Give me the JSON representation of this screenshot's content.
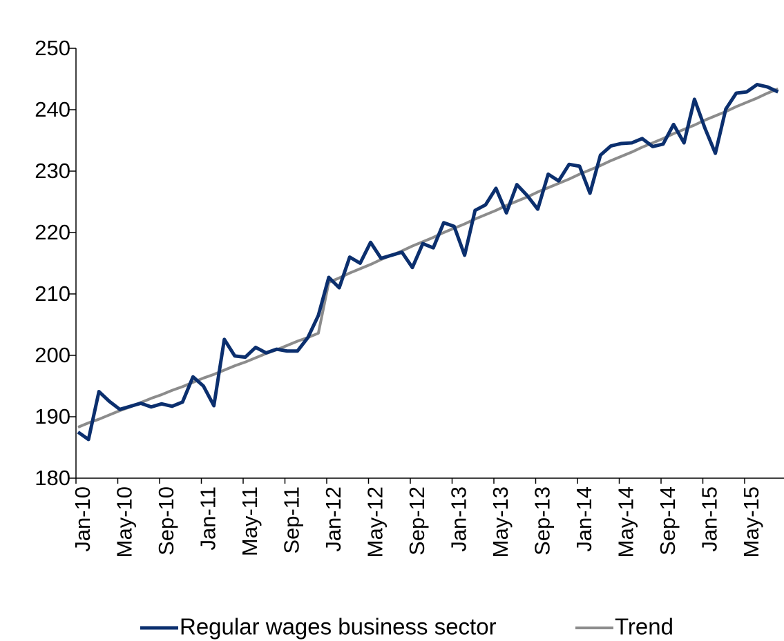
{
  "chart_data": {
    "type": "line",
    "categories": [
      "Jan-10",
      null,
      null,
      null,
      "May-10",
      null,
      null,
      null,
      "Sep-10",
      null,
      null,
      null,
      "Jan-11",
      null,
      null,
      null,
      "May-11",
      null,
      null,
      null,
      "Sep-11",
      null,
      null,
      null,
      "Jan-12",
      null,
      null,
      null,
      "May-12",
      null,
      null,
      null,
      "Sep-12",
      null,
      null,
      null,
      "Jan-13",
      null,
      null,
      null,
      "May-13",
      null,
      null,
      null,
      "Sep-13",
      null,
      null,
      null,
      "Jan-14",
      null,
      null,
      null,
      "May-14",
      null,
      null,
      null,
      "Sep-14",
      null,
      null,
      null,
      "Jan-15",
      null,
      null,
      null,
      "May-15",
      null,
      null,
      null
    ],
    "series": [
      {
        "name": "Regular wages business sector",
        "color": "#0b2f6e",
        "values": [
          187.5,
          186.3,
          194.1,
          192.5,
          191.2,
          191.7,
          192.2,
          191.6,
          192.1,
          191.7,
          192.4,
          196.5,
          195.0,
          191.8,
          202.6,
          199.9,
          199.7,
          201.3,
          200.4,
          201.0,
          200.7,
          200.7,
          202.9,
          206.5,
          212.7,
          211.0,
          216.0,
          215.0,
          218.4,
          215.8,
          216.3,
          216.8,
          214.3,
          218.2,
          217.5,
          221.6,
          221.0,
          216.3,
          223.6,
          224.5,
          227.2,
          223.2,
          227.8,
          226.0,
          223.8,
          229.5,
          228.4,
          231.1,
          230.8,
          226.4,
          232.6,
          234.1,
          234.5,
          234.6,
          235.3,
          234.0,
          234.4,
          237.6,
          234.6,
          241.7,
          237.0,
          232.9,
          240.1,
          242.7,
          242.9,
          244.1,
          243.7,
          242.9
        ]
      },
      {
        "name": "Trend",
        "color": "#8c8c8c",
        "values": [
          188.3,
          189.0,
          189.6,
          190.3,
          191.0,
          191.6,
          192.3,
          193.0,
          193.6,
          194.3,
          194.9,
          195.6,
          196.3,
          196.9,
          197.6,
          198.3,
          198.9,
          199.6,
          200.3,
          200.9,
          201.6,
          202.3,
          202.9,
          203.6,
          211.9,
          212.6,
          213.4,
          214.1,
          214.8,
          215.6,
          216.3,
          217.0,
          217.8,
          218.5,
          219.2,
          220.0,
          220.7,
          221.4,
          222.2,
          222.9,
          223.6,
          224.4,
          225.1,
          225.8,
          226.6,
          227.3,
          228.0,
          228.7,
          229.5,
          230.2,
          230.9,
          231.7,
          232.4,
          233.1,
          233.9,
          234.6,
          235.3,
          236.1,
          236.8,
          237.5,
          238.3,
          239.0,
          239.7,
          240.5,
          241.2,
          241.9,
          242.7,
          243.4
        ]
      }
    ],
    "ylim": [
      180,
      250
    ],
    "yticks": [
      180,
      190,
      200,
      210,
      220,
      230,
      240,
      250
    ],
    "grid": false
  }
}
